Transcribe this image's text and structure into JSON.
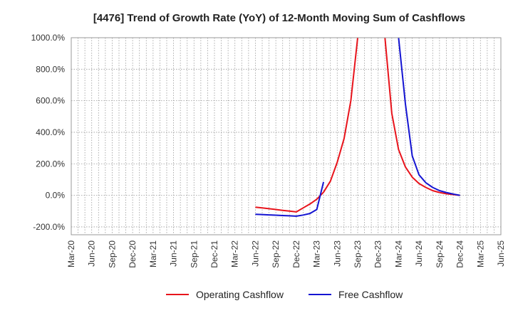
{
  "chart_data": {
    "type": "line",
    "title": "[4476]  Trend of Growth Rate (YoY) of 12-Month Moving Sum of Cashflows",
    "xlabel": "",
    "ylabel": "",
    "ylim": [
      -250,
      1000
    ],
    "y_ticks": [
      1000,
      800,
      600,
      400,
      200,
      0,
      -200
    ],
    "y_tick_labels": [
      "1000.0%",
      "800.0%",
      "600.0%",
      "400.0%",
      "200.0%",
      "0.0%",
      "-200.0%"
    ],
    "x_tick_labels": [
      "Mar-20",
      "Jun-20",
      "Sep-20",
      "Dec-20",
      "Mar-21",
      "Jun-21",
      "Sep-21",
      "Dec-21",
      "Mar-22",
      "Jun-22",
      "Sep-22",
      "Dec-22",
      "Mar-23",
      "Jun-23",
      "Sep-23",
      "Dec-23",
      "Mar-24",
      "Jun-24",
      "Sep-24",
      "Dec-24",
      "Mar-25",
      "Jun-25"
    ],
    "grid": true,
    "legend_position": "bottom-center",
    "x": [
      "Jun-22",
      "Jul-22",
      "Aug-22",
      "Sep-22",
      "Oct-22",
      "Nov-22",
      "Dec-22",
      "Jan-23",
      "Feb-23",
      "Mar-23",
      "Apr-23",
      "May-23",
      "Jun-23",
      "Jul-23",
      "Aug-23",
      "Sep-23",
      "Oct-23",
      "Nov-23",
      "Dec-23",
      "Jan-24",
      "Feb-24",
      "Mar-24",
      "Apr-24",
      "May-24",
      "Jun-24",
      "Jul-24",
      "Aug-24",
      "Sep-24",
      "Oct-24",
      "Nov-24",
      "Dec-24"
    ],
    "series": [
      {
        "name": "Operating Cashflow",
        "color": "#e8141c",
        "values": [
          -75,
          -80,
          -85,
          -90,
          -95,
          -100,
          -105,
          -80,
          -55,
          -25,
          20,
          90,
          210,
          360,
          600,
          1000,
          null,
          null,
          null,
          1000,
          520,
          290,
          180,
          115,
          75,
          50,
          30,
          18,
          10,
          5,
          0
        ]
      },
      {
        "name": "Free Cashflow",
        "color": "#1414d2",
        "values": [
          -120,
          -122,
          -124,
          -126,
          -128,
          -130,
          -132,
          -125,
          -115,
          -90,
          85,
          null,
          null,
          null,
          null,
          null,
          null,
          null,
          null,
          null,
          null,
          1000,
          580,
          250,
          130,
          80,
          50,
          30,
          18,
          8,
          0
        ]
      }
    ]
  }
}
